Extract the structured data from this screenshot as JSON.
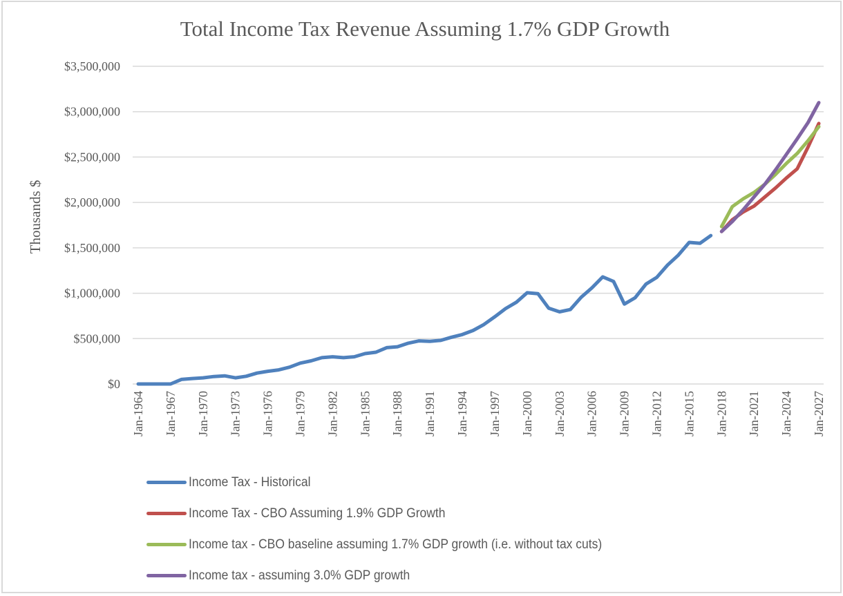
{
  "chart_data": {
    "type": "line",
    "title": "Total Income Tax Revenue Assuming 1.7% GDP Growth",
    "xlabel": "",
    "ylabel": "Thousands $",
    "ylim": [
      0,
      3500000
    ],
    "yticks": [
      0,
      500000,
      1000000,
      1500000,
      2000000,
      2500000,
      3000000,
      3500000
    ],
    "ytick_labels": [
      "$0",
      "$500,000",
      "$1,000,000",
      "$1,500,000",
      "$2,000,000",
      "$2,500,000",
      "$3,000,000",
      "$3,500,000"
    ],
    "xlim": [
      1964,
      2027
    ],
    "xtick_labels": [
      "Jan-1964",
      "Jan-1967",
      "Jan-1970",
      "Jan-1973",
      "Jan-1976",
      "Jan-1979",
      "Jan-1982",
      "Jan-1985",
      "Jan-1988",
      "Jan-1991",
      "Jan-1994",
      "Jan-1997",
      "Jan-2000",
      "Jan-2003",
      "Jan-2006",
      "Jan-2009",
      "Jan-2012",
      "Jan-2015",
      "Jan-2018",
      "Jan-2021",
      "Jan-2024",
      "Jan-2027"
    ],
    "xtick_years": [
      1964,
      1967,
      1970,
      1973,
      1976,
      1979,
      1982,
      1985,
      1988,
      1991,
      1994,
      1997,
      2000,
      2003,
      2006,
      2009,
      2012,
      2015,
      2018,
      2021,
      2024,
      2027
    ],
    "grid": "horizontal",
    "legend_position": "bottom-left",
    "series": [
      {
        "name": "Income Tax - Historical",
        "color": "#4f81bd",
        "start_year": 1964,
        "values": [
          0,
          0,
          0,
          0,
          50000,
          60000,
          68000,
          82000,
          90000,
          68000,
          85000,
          120000,
          140000,
          155000,
          185000,
          230000,
          255000,
          290000,
          300000,
          290000,
          300000,
          335000,
          350000,
          400000,
          410000,
          450000,
          475000,
          470000,
          480000,
          515000,
          545000,
          590000,
          655000,
          740000,
          830000,
          900000,
          1005000,
          995000,
          835000,
          795000,
          820000,
          955000,
          1060000,
          1180000,
          1130000,
          880000,
          950000,
          1100000,
          1175000,
          1310000,
          1420000,
          1560000,
          1550000,
          1635000
        ]
      },
      {
        "name": "Income Tax - CBO Assuming 1.9% GDP Growth",
        "color": "#c0504d",
        "start_year": 2018,
        "values": [
          1680000,
          1810000,
          1895000,
          1960000,
          2060000,
          2160000,
          2270000,
          2370000,
          2610000,
          2870000
        ]
      },
      {
        "name": "Income tax - CBO baseline assuming 1.7% GDP growth (i.e. without tax cuts)",
        "color": "#9bbb59",
        "start_year": 2018,
        "values": [
          1735000,
          1955000,
          2040000,
          2110000,
          2200000,
          2310000,
          2430000,
          2540000,
          2680000,
          2835000
        ]
      },
      {
        "name": "Income tax - assuming 3.0% GDP growth",
        "color": "#8064a2",
        "start_year": 2018,
        "values": [
          1680000,
          1790000,
          1920000,
          2060000,
          2200000,
          2360000,
          2530000,
          2700000,
          2880000,
          3100000
        ]
      }
    ]
  },
  "colors": {
    "grid": "#d9d9d9",
    "text": "#595959",
    "border": "#d9d9d9"
  }
}
